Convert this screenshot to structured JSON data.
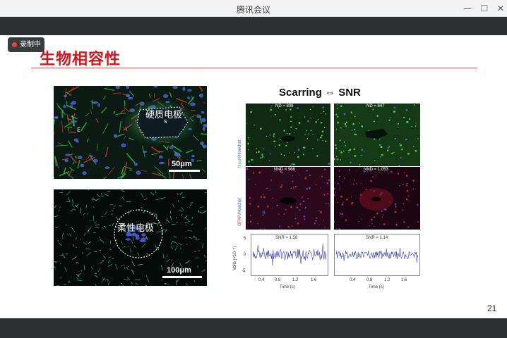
{
  "window": {
    "title": "腾讯会议",
    "controls": {
      "minimize": "—",
      "maximize": "☐",
      "close": "✕"
    },
    "recording_label": "录制中"
  },
  "slide": {
    "title": "生物相容性",
    "page_number": "21",
    "left": {
      "top_image": {
        "label": "硬质电极",
        "sub_label": "s",
        "scale": "50μm",
        "marker": "E",
        "colors": {
          "bg": "#0a1a10",
          "green": "#2fd34c",
          "red": "#e53a3a",
          "blue": "#4a66d6"
        }
      },
      "bottom_image": {
        "label": "柔性电极",
        "scale": "100μm",
        "colors": {
          "bg": "#050a08",
          "cyan": "#4fd6b0",
          "blue": "#4a56d6"
        }
      }
    },
    "right": {
      "title": "Scarring ⇔ SNR",
      "y_labels": {
        "top": {
          "a": "NeuN",
          "b": "/Hoechst"
        },
        "bottom": {
          "a": "GFAP",
          "b": "/Hoechst"
        }
      },
      "panels": [
        {
          "label": "ND = 808"
        },
        {
          "label": "ND = 647"
        },
        {
          "label": "NND = 966"
        },
        {
          "label": "NND = 1,053"
        }
      ],
      "traces": [
        {
          "snr": "SNR = 1.58"
        },
        {
          "snr": "SNR = 1.14"
        }
      ],
      "trace_axis": {
        "ylabel": "Volts (×10⁻⁵)",
        "yticks": [
          "5",
          "0",
          "-5"
        ],
        "xlabel": "Time (s)",
        "xticks_left": [
          "0.4",
          "0.8",
          "1.2",
          "1.6"
        ],
        "xticks_right": [
          "0.4",
          "0.8",
          "1.2",
          "1.6"
        ]
      }
    }
  }
}
